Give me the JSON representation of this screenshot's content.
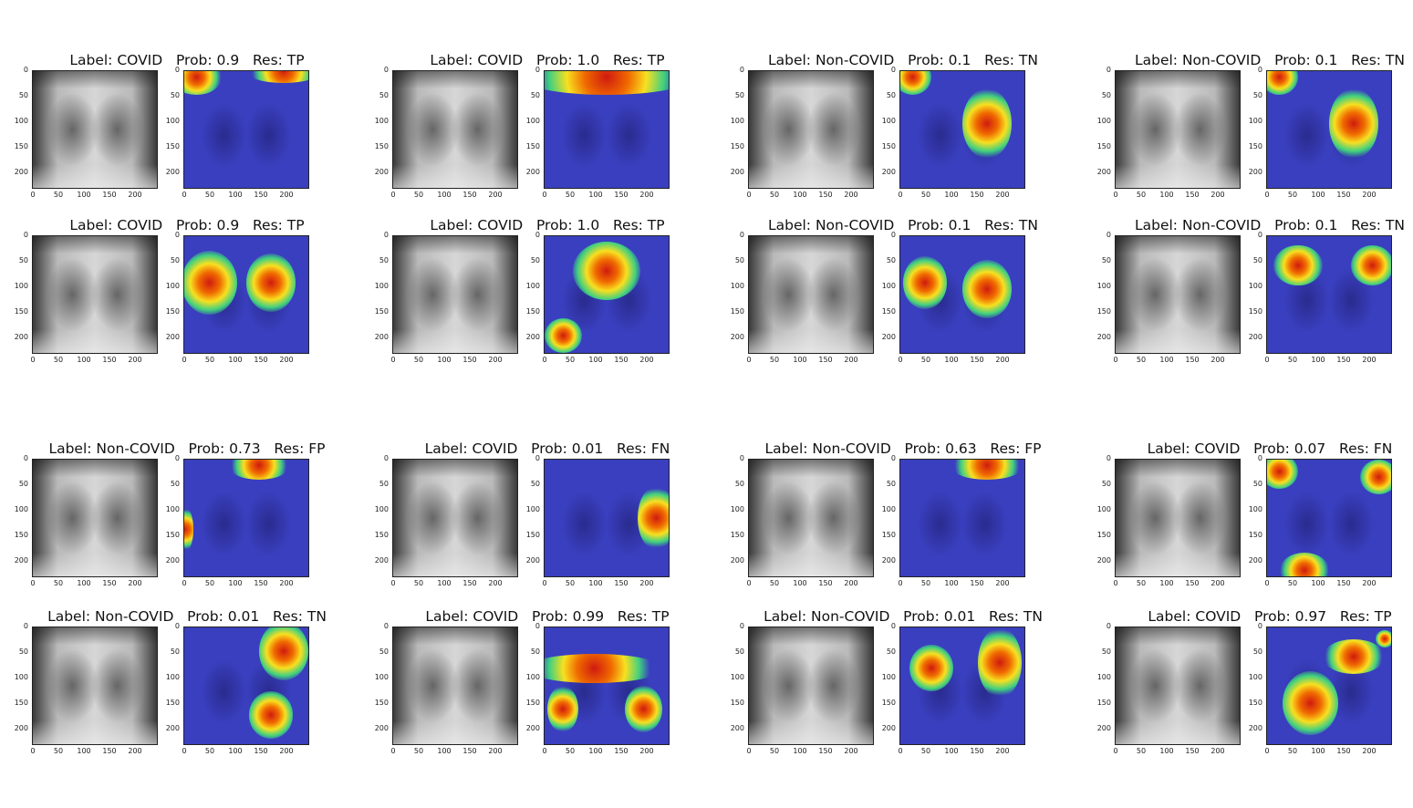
{
  "tick_labels": {
    "y": [
      "0",
      "50",
      "100",
      "150",
      "200"
    ],
    "x": [
      "0",
      "50",
      "100",
      "150",
      "200"
    ]
  },
  "panels": [
    {
      "label": "COVID",
      "prob": "0.9",
      "res": "TP",
      "title": "Label: COVID   Prob: 0.9   Res: TP"
    },
    {
      "label": "COVID",
      "prob": "1.0",
      "res": "TP",
      "title": "Label: COVID   Prob: 1.0   Res: TP"
    },
    {
      "label": "Non-COVID",
      "prob": "0.1",
      "res": "TN",
      "title": "Label: Non-COVID   Prob: 0.1   Res: TN"
    },
    {
      "label": "Non-COVID",
      "prob": "0.1",
      "res": "TN",
      "title": "Label: Non-COVID   Prob: 0.1   Res: TN"
    },
    {
      "label": "COVID",
      "prob": "0.9",
      "res": "TP",
      "title": "Label: COVID   Prob: 0.9   Res: TP"
    },
    {
      "label": "COVID",
      "prob": "1.0",
      "res": "TP",
      "title": "Label: COVID   Prob: 1.0   Res: TP"
    },
    {
      "label": "Non-COVID",
      "prob": "0.1",
      "res": "TN",
      "title": "Label: Non-COVID   Prob: 0.1   Res: TN"
    },
    {
      "label": "Non-COVID",
      "prob": "0.1",
      "res": "TN",
      "title": "Label: Non-COVID   Prob: 0.1   Res: TN"
    },
    {
      "label": "Non-COVID",
      "prob": "0.73",
      "res": "FP",
      "title": "Label: Non-COVID   Prob: 0.73   Res: FP"
    },
    {
      "label": "COVID",
      "prob": "0.01",
      "res": "FN",
      "title": "Label: COVID   Prob: 0.01   Res: FN"
    },
    {
      "label": "Non-COVID",
      "prob": "0.63",
      "res": "FP",
      "title": "Label: Non-COVID   Prob: 0.63   Res: FP"
    },
    {
      "label": "COVID",
      "prob": "0.07",
      "res": "FN",
      "title": "Label: COVID   Prob: 0.07   Res: FN"
    },
    {
      "label": "Non-COVID",
      "prob": "0.01",
      "res": "TN",
      "title": "Label: Non-COVID   Prob: 0.01   Res: TN"
    },
    {
      "label": "COVID",
      "prob": "0.99",
      "res": "TP",
      "title": "Label: COVID   Prob: 0.99   Res: TP"
    },
    {
      "label": "Non-COVID",
      "prob": "0.01",
      "res": "TN",
      "title": "Label: Non-COVID   Prob: 0.01   Res: TN"
    },
    {
      "label": "COVID",
      "prob": "0.97",
      "res": "TP",
      "title": "Label: COVID   Prob: 0.97   Res: TP"
    }
  ],
  "colors": {
    "cam_background": "#3a3fbf",
    "hot": "#d01a10",
    "warm": "#f8e020",
    "xray_mid": "#d6d6d6"
  }
}
